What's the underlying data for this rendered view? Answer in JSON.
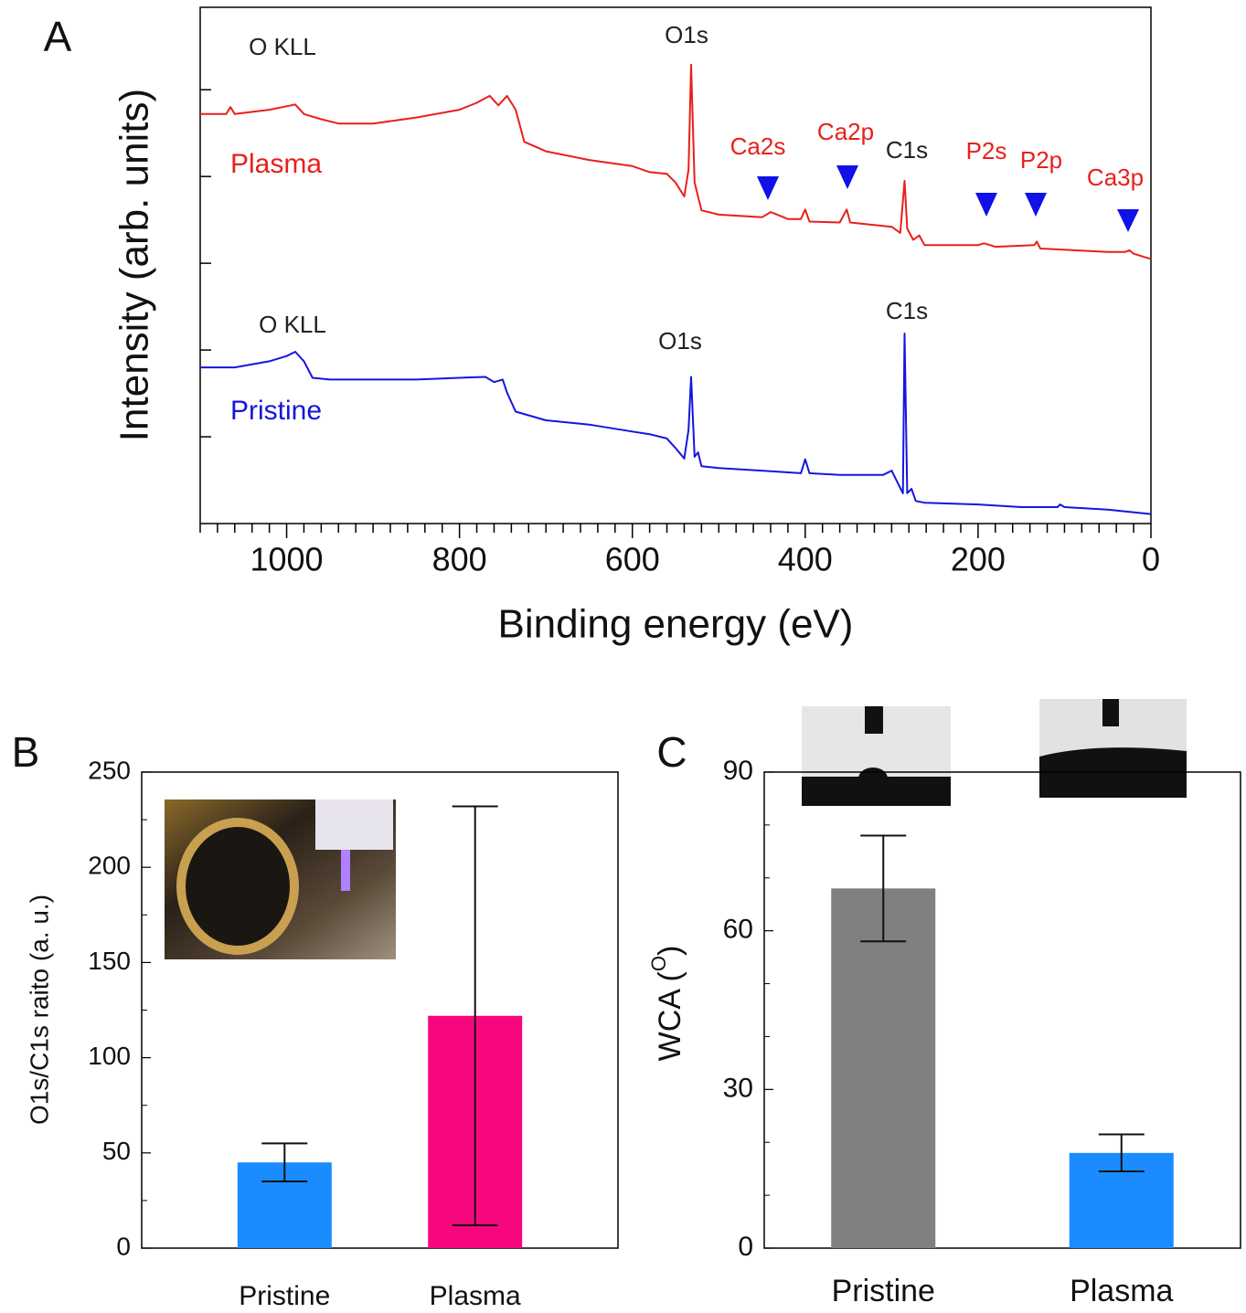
{
  "chart_data": [
    {
      "type": "line",
      "panel": "A",
      "xlabel": "Binding energy (eV)",
      "ylabel": "Intensity (arb. units)",
      "xlim": [
        1100,
        0
      ],
      "xticks": [
        1000,
        800,
        600,
        400,
        200,
        0
      ],
      "xminorticks": [
        1100,
        1080,
        1060,
        1040,
        1020,
        980,
        960,
        940,
        920,
        900,
        880,
        860,
        840,
        820,
        780,
        760,
        740,
        720,
        700,
        680,
        660,
        640,
        620,
        580,
        560,
        540,
        520,
        500,
        480,
        460,
        440,
        420,
        380,
        360,
        340,
        320,
        300,
        280,
        260,
        240,
        220,
        180,
        160,
        140,
        120,
        100,
        80,
        60,
        40,
        20
      ],
      "ylim": [
        0,
        5.95
      ],
      "yticks": [
        1,
        2,
        3,
        4,
        5
      ],
      "y_tick_labels": false,
      "series": [
        {
          "name": "Plasma",
          "color": "#e8201a",
          "x": [
            1100,
            1070,
            1065,
            1060,
            1020,
            1000,
            990,
            980,
            960,
            940,
            900,
            850,
            800,
            780,
            765,
            755,
            745,
            735,
            725,
            700,
            650,
            600,
            580,
            560,
            550,
            540,
            535,
            532,
            528,
            520,
            500,
            450,
            440,
            420,
            405,
            400,
            395,
            360,
            352,
            348,
            300,
            290,
            285,
            282,
            275,
            268,
            262,
            200,
            193,
            180,
            135,
            132,
            128,
            50,
            30,
            25,
            20,
            0
          ],
          "values": [
            4.72,
            4.72,
            4.8,
            4.72,
            4.77,
            4.81,
            4.83,
            4.72,
            4.66,
            4.61,
            4.61,
            4.68,
            4.77,
            4.85,
            4.93,
            4.82,
            4.93,
            4.77,
            4.4,
            4.29,
            4.19,
            4.12,
            4.05,
            4.03,
            3.93,
            3.77,
            4.08,
            5.29,
            3.93,
            3.61,
            3.56,
            3.53,
            3.59,
            3.51,
            3.51,
            3.62,
            3.48,
            3.47,
            3.62,
            3.47,
            3.42,
            3.35,
            3.95,
            3.4,
            3.27,
            3.32,
            3.21,
            3.21,
            3.23,
            3.19,
            3.21,
            3.25,
            3.17,
            3.13,
            3.13,
            3.15,
            3.11,
            3.05
          ]
        },
        {
          "name": "Pristine",
          "color": "#1515e0",
          "x": [
            1100,
            1060,
            1020,
            1000,
            990,
            980,
            970,
            950,
            900,
            850,
            800,
            770,
            760,
            750,
            745,
            735,
            700,
            650,
            600,
            580,
            560,
            550,
            540,
            535,
            532,
            528,
            524,
            520,
            500,
            450,
            405,
            400,
            395,
            360,
            310,
            300,
            292,
            287,
            285,
            282,
            277,
            272,
            262,
            200,
            150,
            108,
            105,
            100,
            50,
            0
          ],
          "values": [
            1.8,
            1.8,
            1.87,
            1.93,
            1.98,
            1.87,
            1.68,
            1.66,
            1.66,
            1.66,
            1.68,
            1.69,
            1.63,
            1.66,
            1.51,
            1.29,
            1.19,
            1.14,
            1.06,
            1.03,
            0.98,
            0.87,
            0.75,
            1.08,
            1.69,
            0.77,
            0.82,
            0.66,
            0.64,
            0.61,
            0.58,
            0.74,
            0.58,
            0.56,
            0.56,
            0.61,
            0.45,
            0.35,
            2.19,
            0.35,
            0.4,
            0.26,
            0.24,
            0.22,
            0.19,
            0.19,
            0.22,
            0.19,
            0.16,
            0.11
          ]
        }
      ],
      "annotations": [
        {
          "text": "O KLL",
          "color": "#222222"
        },
        {
          "text": "O1s",
          "color": "#222222"
        },
        {
          "text": "Ca2s",
          "color": "#e8201a"
        },
        {
          "text": "Ca2p",
          "color": "#e8201a"
        },
        {
          "text": "C1s",
          "color": "#222222"
        },
        {
          "text": "P2s",
          "color": "#e8201a"
        },
        {
          "text": "P2p",
          "color": "#e8201a"
        },
        {
          "text": "Ca3p",
          "color": "#e8201a"
        },
        {
          "text": "O KLL",
          "color": "#222222"
        },
        {
          "text": "O1s",
          "color": "#222222"
        },
        {
          "text": "C1s",
          "color": "#222222"
        }
      ]
    },
    {
      "type": "bar",
      "panel": "B",
      "ylabel": "O1s/C1s raito (a. u.)",
      "categories": [
        "Pristine",
        "Plasma"
      ],
      "values": [
        45,
        122
      ],
      "errors": [
        10,
        110
      ],
      "colors": [
        "#1a8cff",
        "#f7077d"
      ],
      "ylim": [
        0,
        250
      ],
      "yticks": [
        0,
        50,
        100,
        150,
        200,
        250
      ],
      "yminorticks": [
        25,
        75,
        125,
        175,
        225
      ]
    },
    {
      "type": "bar",
      "panel": "C",
      "ylabel_parts": [
        "WCA (",
        "O",
        ")"
      ],
      "categories": [
        "Pristine",
        "Plasma"
      ],
      "values": [
        68,
        18
      ],
      "errors": [
        10,
        3.5
      ],
      "colors": [
        "#808080",
        "#1a8cff"
      ],
      "ylim": [
        0,
        90
      ],
      "yticks": [
        0,
        30,
        60,
        90
      ],
      "yminorticks": [
        10,
        20,
        40,
        50,
        70,
        80
      ]
    }
  ]
}
